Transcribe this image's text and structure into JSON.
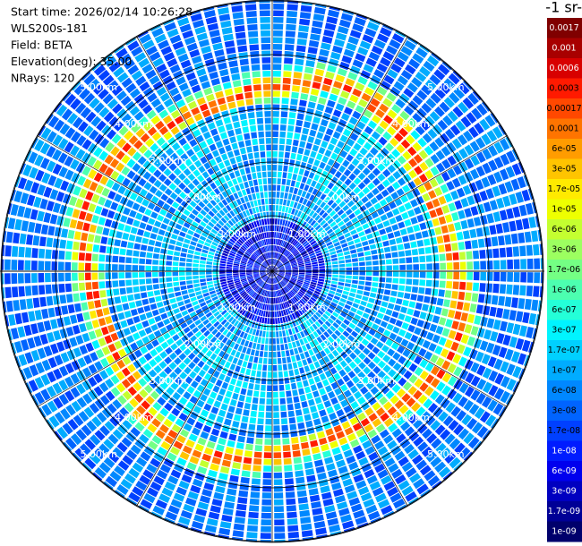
{
  "info": [
    "Start time: 2026/02/14 10:26:28",
    "WLS200s-181",
    "Field: BETA",
    "Elevation(deg): 35.00",
    "NRays: 120"
  ],
  "range_labels": [
    "1.00km",
    "2.00km",
    "3.00km",
    "4.00km",
    "5.00km"
  ],
  "colorbar": {
    "unit": "-1 sr-",
    "labels": [
      "0.0017",
      "0.001",
      "0.0006",
      "0.0003",
      "0.00017",
      "0.0001",
      "6e-05",
      "3e-05",
      "1.7e-05",
      "1e-05",
      "6e-06",
      "3e-06",
      "1.7e-06",
      "1e-06",
      "6e-07",
      "3e-07",
      "1.7e-07",
      "1e-07",
      "6e-08",
      "3e-08",
      "1.7e-08",
      "1e-08",
      "6e-09",
      "3e-09",
      "1.7e-09",
      "1e-09"
    ],
    "colors": [
      "#800000",
      "#a80000",
      "#d80000",
      "#ff1a00",
      "#ff4800",
      "#ff7400",
      "#ff9c00",
      "#ffc400",
      "#ffea00",
      "#eeff00",
      "#c4ff30",
      "#9cff60",
      "#74ff84",
      "#4cffb0",
      "#24ffd8",
      "#00f4ff",
      "#00d0ff",
      "#00acff",
      "#0088ff",
      "#0064ff",
      "#0040ff",
      "#001cff",
      "#0000ee",
      "#0000c0",
      "#000096",
      "#00006c"
    ]
  }
}
